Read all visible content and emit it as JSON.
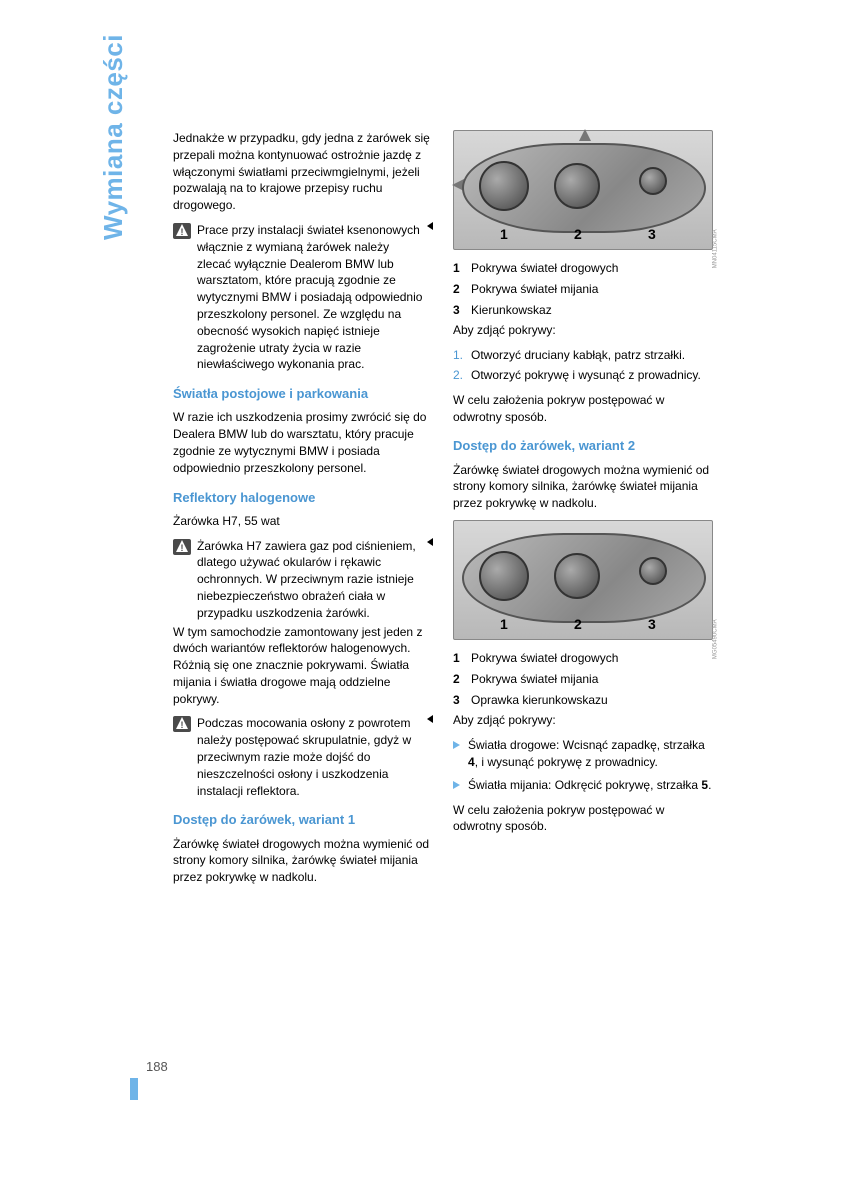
{
  "sideTitle": "Wymiana części",
  "pageNumber": "188",
  "col1": {
    "intro": "Jednakże w przypadku, gdy jedna z żarówek się przepali można kontynuować ostrożnie jazdę z włączonymi światłami przeciwmgielnymi, jeżeli pozwalają na to krajowe przepisy ruchu drogowego.",
    "warn1": "Prace przy instalacji świateł ksenonowych włącznie z wymianą żarówek należy zlecać wyłącznie Dealerom BMW lub warsztatom, które pracują zgodnie ze wytycznymi BMW i posiadają odpowiednio przeszkolony personel. Ze względu na obecność wysokich napięć istnieje zagrożenie utraty życia w razie niewłaściwego wykonania prac.",
    "h1": "Światła postojowe i parkowania",
    "p1": "W razie ich uszkodzenia prosimy zwrócić się do Dealera BMW lub do warsztatu, który pracuje zgodnie ze wytycznymi BMW i posiada odpowiednio przeszkolony personel.",
    "h2": "Reflektory halogenowe",
    "bulb": "Żarówka H7, 55 wat",
    "warn2": "Żarówka H7 zawiera gaz pod ciśnieniem, dlatego używać okularów i rękawic ochronnych. W przeciwnym razie istnieje niebezpieczeństwo obrażeń ciała w przypadku uszkodzenia żarówki.",
    "p2": "W tym samochodzie zamontowany jest jeden z dwóch wariantów reflektorów halogenowych. Różnią się one znacznie pokrywami. Światła mijania i światła drogowe mają oddzielne pokrywy.",
    "warn3": "Podczas mocowania osłony z powrotem należy postępować skrupulatnie, gdyż w przeciwnym razie może dojść do nieszczelności osłony i uszkodzenia instalacji reflektora.",
    "h3": "Dostęp do żarówek, wariant 1",
    "p3": "Żarówkę świateł drogowych można wymienić od strony komory silnika, żarówkę świateł mijania przez pokrywkę w nadkolu."
  },
  "col2": {
    "fig1code": "MN04115CMA",
    "legend1": {
      "n1": "1",
      "t1": "Pokrywa świateł drogowych",
      "n2": "2",
      "t2": "Pokrywa świateł mijania",
      "n3": "3",
      "t3": "Kierunkowskaz"
    },
    "removeLabel": "Aby zdjąć pokrywy:",
    "steps1": {
      "s1": "Otworzyć druciany kabłąk, patrz strzałki.",
      "s2": "Otworzyć pokrywę i wysunąć z prowadnicy."
    },
    "reinstall1": "W celu założenia pokryw postępować w odwrotny sposób.",
    "h4": "Dostęp do żarówek, wariant 2",
    "p4": "Żarówkę świateł drogowych można wymienić od strony komory silnika, żarówkę świateł mijania przez pokrywkę w nadkolu.",
    "fig2code": "MG05490CMA",
    "legend2": {
      "n1": "1",
      "t1": "Pokrywa świateł drogowych",
      "n2": "2",
      "t2": "Pokrywa świateł mijania",
      "n3": "3",
      "t3": "Oprawka kierunkowskazu"
    },
    "removeLabel2": "Aby zdjąć pokrywy:",
    "bullets": {
      "b1a": "Światła drogowe: Wcisnąć zapadkę, strzałka ",
      "b1b": "4",
      "b1c": ", i wysunąć pokrywę z prowadnicy.",
      "b2a": "Światła mijania: Odkręcić pokrywę, strzałka ",
      "b2b": "5",
      "b2c": "."
    },
    "reinstall2": "W celu założenia pokryw postępować w odwrotny sposób."
  }
}
